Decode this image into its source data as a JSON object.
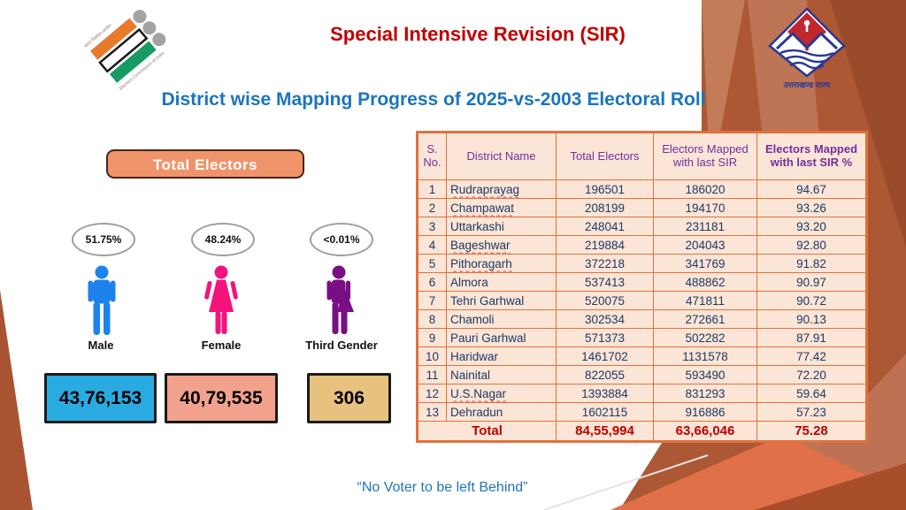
{
  "header": {
    "title": "Special Intensive Revision (SIR)",
    "subtitle": "District wise Mapping Progress of 2025-vs-2003 Electoral Roll",
    "eci_logo": {
      "left_text": "भारत निर्वाचन आयोग",
      "right_text": "Election Commission of India"
    },
    "state_logo": {
      "caption": "उत्तराखण्ड राज्य"
    }
  },
  "summary": {
    "badge_label": "Total Electors",
    "genders": [
      {
        "label": "Male",
        "percent": "51.75%",
        "count": "43,76,153",
        "figure_color": "#1E82EC",
        "box_color": "#29ABE2"
      },
      {
        "label": "Female",
        "percent": "48.24%",
        "count": "40,79,535",
        "figure_color": "#F4127C",
        "box_color": "#F2A28C"
      },
      {
        "label": "Third Gender",
        "percent": "<0.01%",
        "count": "306",
        "figure_color": "#7A0E85",
        "box_color": "#E7C17E"
      }
    ]
  },
  "table": {
    "headers": [
      "S. No.",
      "District Name",
      "Total Electors",
      "Electors Mapped with last SIR",
      "Electors Mapped with last SIR %"
    ],
    "rows": [
      {
        "sno": "1",
        "district": "Rudraprayag",
        "total": "196501",
        "mapped": "186020",
        "percent": "94.67",
        "spellcheck": true
      },
      {
        "sno": "2",
        "district": "Champawat",
        "total": "208199",
        "mapped": "194170",
        "percent": "93.26",
        "spellcheck": true
      },
      {
        "sno": "3",
        "district": "Uttarkashi",
        "total": "248041",
        "mapped": "231181",
        "percent": "93.20",
        "spellcheck": false
      },
      {
        "sno": "4",
        "district": "Bageshwar",
        "total": "219884",
        "mapped": "204043",
        "percent": "92.80",
        "spellcheck": true
      },
      {
        "sno": "5",
        "district": "Pithoragarh",
        "total": "372218",
        "mapped": "341769",
        "percent": "91.82",
        "spellcheck": true
      },
      {
        "sno": "6",
        "district": "Almora",
        "total": "537413",
        "mapped": "488862",
        "percent": "90.97",
        "spellcheck": false
      },
      {
        "sno": "7",
        "district": "Tehri Garhwal",
        "total": "520075",
        "mapped": "471811",
        "percent": "90.72",
        "spellcheck": false
      },
      {
        "sno": "8",
        "district": "Chamoli",
        "total": "302534",
        "mapped": "272661",
        "percent": "90.13",
        "spellcheck": false
      },
      {
        "sno": "9",
        "district": "Pauri Garhwal",
        "total": "571373",
        "mapped": "502282",
        "percent": "87.91",
        "spellcheck": false
      },
      {
        "sno": "10",
        "district": "Haridwar",
        "total": "1461702",
        "mapped": "1131578",
        "percent": "77.42",
        "spellcheck": false
      },
      {
        "sno": "11",
        "district": "Nainital",
        "total": "822055",
        "mapped": "593490",
        "percent": "72.20",
        "spellcheck": false
      },
      {
        "sno": "12",
        "district": "U.S.Nagar",
        "total": "1393884",
        "mapped": "831293",
        "percent": "59.64",
        "spellcheck": true
      },
      {
        "sno": "13",
        "district": "Dehradun",
        "total": "1602115",
        "mapped": "916886",
        "percent": "57.23",
        "spellcheck": false
      }
    ],
    "total": {
      "label": "Total",
      "total_electors": "84,55,994",
      "mapped": "63,66,046",
      "percent": "75.28"
    }
  },
  "footer": {
    "quote": "“No Voter to be left Behind”"
  },
  "colors": {
    "title_red": "#C00000",
    "subtitle_blue": "#1B75BC",
    "table_border_orange": "#E2713C",
    "table_bg_peach": "#FBE5D6",
    "table_header_purple": "#7030A0",
    "table_body_navy": "#1F3864",
    "total_row_red": "#C00000",
    "badge_orange": "#EF946A",
    "male_blue": "#1E82EC",
    "female_pink": "#F4127C",
    "third_gender_purple": "#7A0E85",
    "male_box_cyan": "#29ABE2",
    "female_box_salmon": "#F2A28C",
    "third_box_tan": "#E7C17E",
    "background_sienna": "#AC5835"
  }
}
